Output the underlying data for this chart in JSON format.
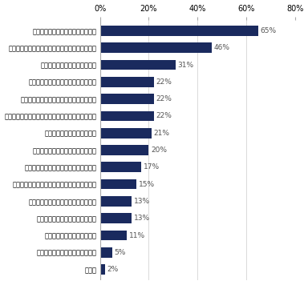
{
  "categories": [
    "面接官の人柄・印象が良かったため",
    "面接官が話しやすい雰囲気をつくってくれたため",
    "入社後のイメージができたため",
    "提示された給与や待遇が良かったため",
    "求人情報と面接の話に齬齒がなかったため",
    "面接日時の連絡が、早かった・調整してくれたため",
    "職場の雰囲気が良かったため",
    "想像していた通りの仕事だったため",
    "面接官の身なり・マナーが良かったため",
    "面接後に雑談や社内見学の時間をもらったため",
    "オフィスの設備や立地が良かったため",
    "面接官の質問内容が良かったため",
    "面接場所がキレイだったため",
    "面接時間がちょうどよかったため",
    "その他"
  ],
  "values": [
    65,
    46,
    31,
    22,
    22,
    22,
    21,
    20,
    17,
    15,
    13,
    13,
    11,
    5,
    2
  ],
  "bar_color": "#1a2a5e",
  "label_color": "#555555",
  "value_color": "#555555",
  "background_color": "#ffffff",
  "xlim": [
    0,
    80
  ],
  "xticks": [
    0,
    20,
    40,
    60,
    80
  ],
  "xticklabels": [
    "0%",
    "20%",
    "40%",
    "60%",
    "80%"
  ],
  "bar_height": 0.6,
  "label_fontsize": 6.0,
  "value_fontsize": 6.5,
  "tick_fontsize": 7.0,
  "grid_color": "#cccccc",
  "spine_color": "#aaaaaa"
}
